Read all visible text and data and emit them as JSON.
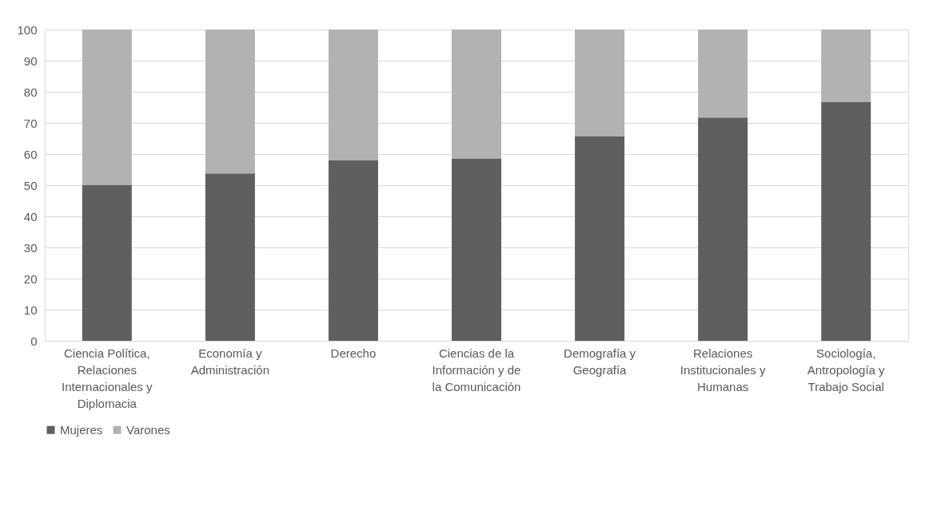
{
  "chart_data": {
    "type": "bar",
    "stacked": true,
    "categories": [
      "Ciencia Política, Relaciones Internacionales y Diplomacia",
      "Economía y Administración",
      "Derecho",
      "Ciencias de la Información y de la Comunicación",
      "Demografía y Geografía",
      "Relaciones Institucionales y Humanas",
      "Sociología, Antropología y Trabajo Social"
    ],
    "series": [
      {
        "name": "Mujeres",
        "color": "#5f5f5f",
        "values": [
          50,
          53.8,
          58.1,
          58.6,
          65.8,
          71.7,
          76.8
        ]
      },
      {
        "name": "Varones",
        "color": "#b2b2b2",
        "values": [
          50,
          46.2,
          41.9,
          41.4,
          34.2,
          28.3,
          23.2
        ]
      }
    ],
    "ylim": [
      0,
      100
    ],
    "yticks": [
      0,
      10,
      20,
      30,
      40,
      50,
      60,
      70,
      80,
      90,
      100
    ],
    "grid": "y",
    "legend": "bottom"
  }
}
